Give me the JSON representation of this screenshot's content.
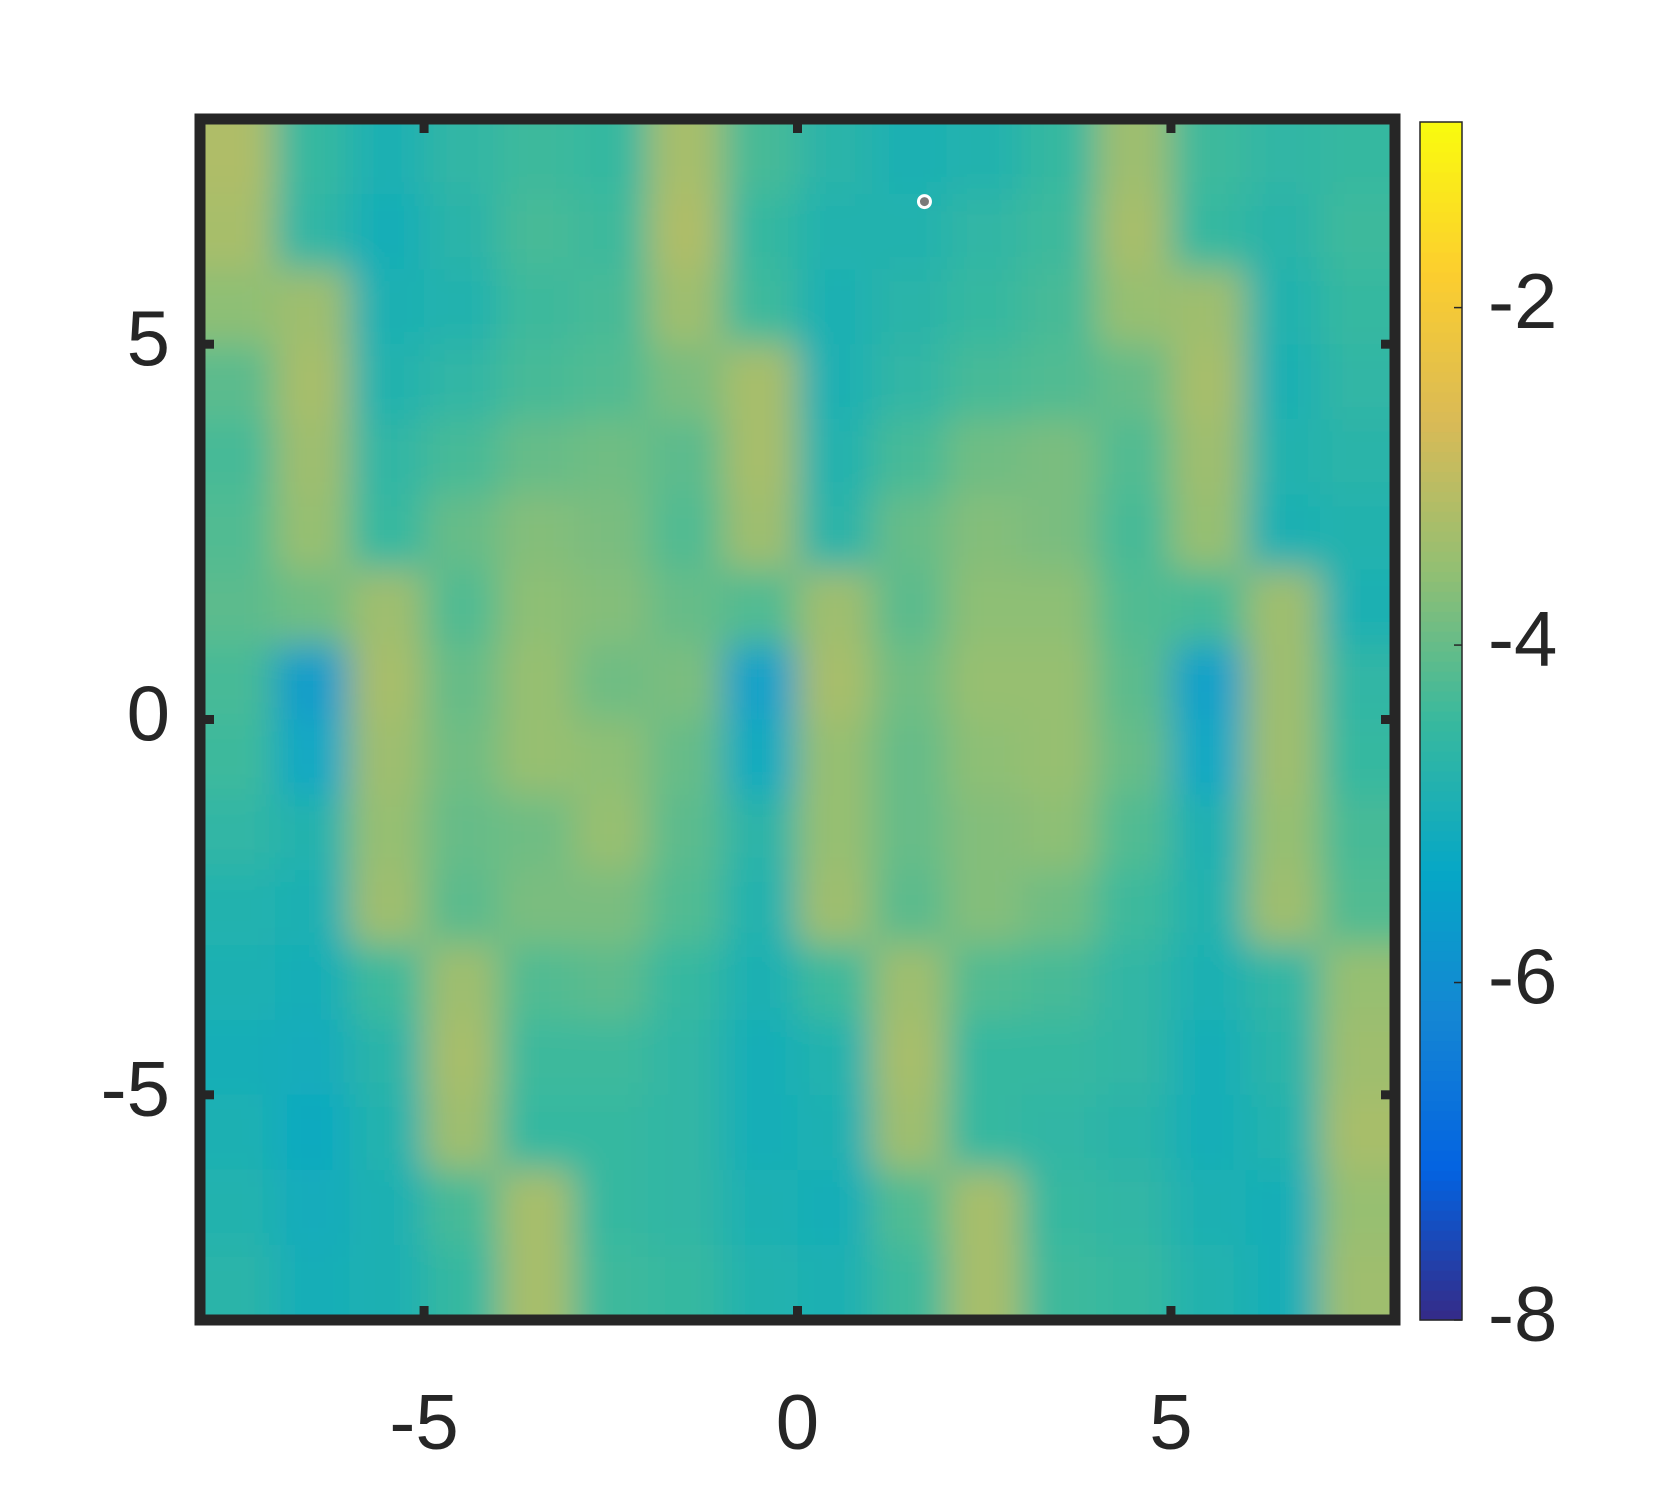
{
  "chart_data": {
    "type": "contourf",
    "xlim": [
      -8,
      8
    ],
    "ylim": [
      -8,
      8
    ],
    "xticks": [
      -5,
      0,
      5
    ],
    "yticks": [
      -5,
      0,
      5
    ],
    "clim": [
      -8,
      -0.9
    ],
    "cticks": [
      -8,
      -6,
      -4,
      -2
    ],
    "colormap": [
      "#352a87",
      "#0363e1",
      "#1485d4",
      "#06a7c6",
      "#38b99e",
      "#92bf73",
      "#d9ba56",
      "#fcce2e",
      "#f9fb0e"
    ],
    "z": [
      [
        -3.2,
        -4.5,
        -4.9,
        -4.6,
        -4.4,
        -4.5,
        -3.3,
        -4.3,
        -4.7,
        -4.9,
        -4.8,
        -4.5,
        -3.4,
        -4.4,
        -4.6,
        -4.5
      ],
      [
        -3.3,
        -4.6,
        -5.0,
        -4.7,
        -4.3,
        -4.4,
        -3.2,
        -4.5,
        -4.8,
        -4.8,
        -4.6,
        -4.4,
        -3.3,
        -4.5,
        -4.7,
        -4.4
      ],
      [
        -3.6,
        -3.4,
        -4.9,
        -4.8,
        -4.4,
        -4.3,
        -3.4,
        -4.4,
        -4.9,
        -4.7,
        -4.5,
        -4.3,
        -3.5,
        -3.4,
        -4.8,
        -4.5
      ],
      [
        -4.1,
        -3.3,
        -4.8,
        -4.6,
        -4.3,
        -4.2,
        -3.8,
        -3.3,
        -4.9,
        -4.6,
        -4.3,
        -4.2,
        -4.0,
        -3.3,
        -4.9,
        -4.6
      ],
      [
        -4.3,
        -3.4,
        -4.6,
        -4.3,
        -4.0,
        -3.9,
        -4.1,
        -3.3,
        -4.8,
        -4.3,
        -3.9,
        -3.8,
        -4.2,
        -3.4,
        -4.8,
        -4.7
      ],
      [
        -4.2,
        -3.5,
        -4.5,
        -4.0,
        -3.7,
        -3.8,
        -4.2,
        -3.4,
        -4.7,
        -4.0,
        -3.7,
        -3.8,
        -4.3,
        -3.5,
        -4.9,
        -4.8
      ],
      [
        -4.1,
        -3.9,
        -3.4,
        -4.2,
        -3.6,
        -3.7,
        -4.0,
        -4.2,
        -3.4,
        -4.1,
        -3.6,
        -3.6,
        -4.2,
        -4.3,
        -3.4,
        -4.9
      ],
      [
        -4.3,
        -5.6,
        -3.3,
        -4.0,
        -3.5,
        -3.9,
        -3.8,
        -5.5,
        -3.3,
        -3.9,
        -3.5,
        -3.5,
        -4.1,
        -5.5,
        -3.4,
        -4.6
      ],
      [
        -4.4,
        -5.3,
        -3.4,
        -3.9,
        -3.5,
        -3.6,
        -4.0,
        -5.2,
        -3.5,
        -4.0,
        -3.6,
        -3.5,
        -4.0,
        -5.3,
        -3.4,
        -4.5
      ],
      [
        -4.6,
        -4.8,
        -3.5,
        -4.0,
        -3.9,
        -3.5,
        -4.1,
        -4.7,
        -3.5,
        -4.0,
        -3.7,
        -3.6,
        -4.2,
        -4.9,
        -3.5,
        -4.3
      ],
      [
        -4.8,
        -4.9,
        -3.4,
        -4.1,
        -3.8,
        -3.8,
        -4.2,
        -4.8,
        -3.4,
        -4.1,
        -3.7,
        -3.9,
        -4.4,
        -4.8,
        -3.4,
        -4.2
      ],
      [
        -4.9,
        -5.0,
        -4.4,
        -3.4,
        -4.2,
        -4.1,
        -4.5,
        -4.9,
        -4.4,
        -3.4,
        -4.2,
        -4.3,
        -4.6,
        -4.9,
        -4.6,
        -3.5
      ],
      [
        -5.0,
        -5.1,
        -4.7,
        -3.3,
        -4.4,
        -4.4,
        -4.6,
        -5.0,
        -4.8,
        -3.3,
        -4.5,
        -4.5,
        -4.6,
        -5.0,
        -4.7,
        -3.4
      ],
      [
        -4.9,
        -5.2,
        -4.8,
        -3.4,
        -4.5,
        -4.5,
        -4.6,
        -5.0,
        -4.9,
        -3.4,
        -4.5,
        -4.6,
        -4.7,
        -5.0,
        -4.8,
        -3.3
      ],
      [
        -4.8,
        -5.1,
        -4.9,
        -4.3,
        -3.3,
        -4.5,
        -4.6,
        -4.9,
        -5.0,
        -4.2,
        -3.3,
        -4.5,
        -4.6,
        -4.9,
        -5.0,
        -3.5
      ],
      [
        -4.7,
        -5.0,
        -4.9,
        -4.5,
        -3.3,
        -4.4,
        -4.5,
        -4.8,
        -4.9,
        -4.4,
        -3.3,
        -4.4,
        -4.5,
        -4.8,
        -5.0,
        -3.4
      ]
    ],
    "marker": {
      "x": 1.7,
      "y": 6.9
    }
  }
}
